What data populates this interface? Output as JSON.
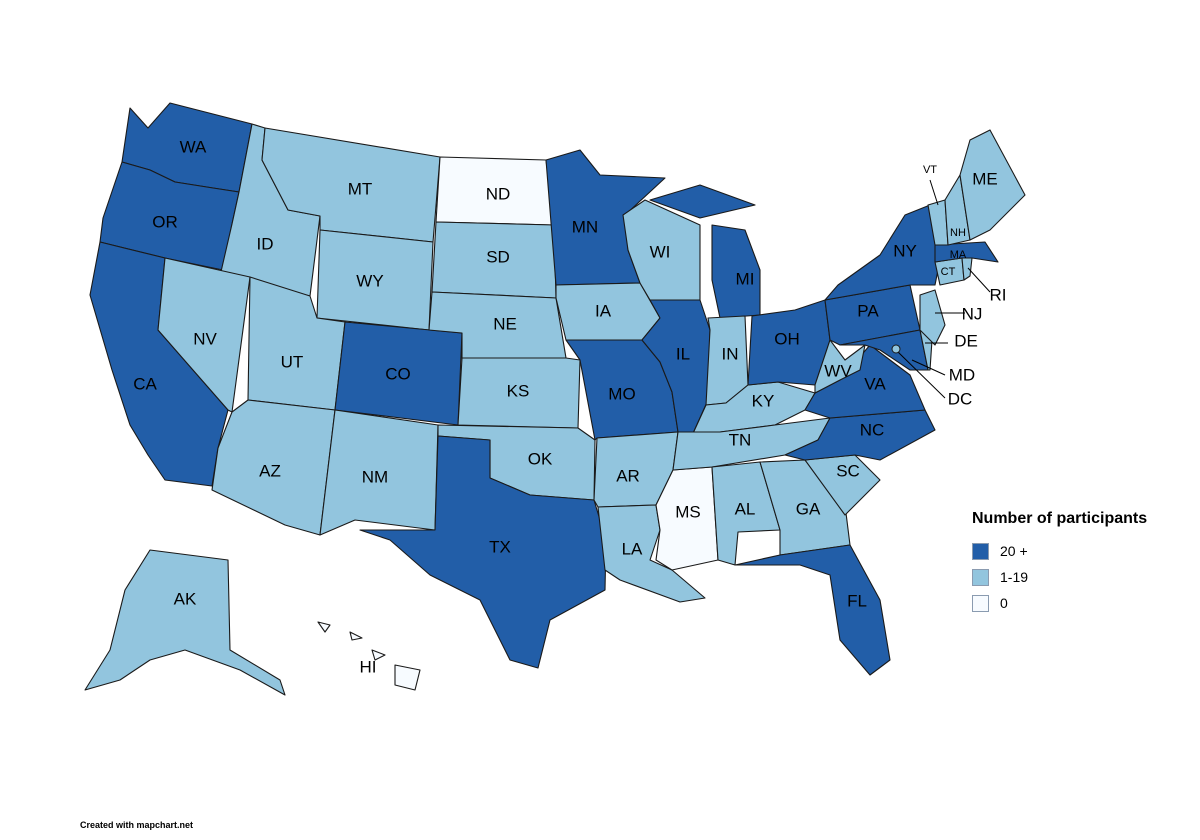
{
  "legend": {
    "title": "Number of participants",
    "items": [
      {
        "label": "20 +",
        "color": "#225ea8"
      },
      {
        "label": "1-19",
        "color": "#92c5de"
      },
      {
        "label": "0",
        "color": "#f7fbff"
      }
    ]
  },
  "credit": "Created with mapchart.net",
  "states": [
    {
      "code": "WA",
      "tier": 0
    },
    {
      "code": "OR",
      "tier": 0
    },
    {
      "code": "CA",
      "tier": 0
    },
    {
      "code": "ID",
      "tier": 1
    },
    {
      "code": "NV",
      "tier": 1
    },
    {
      "code": "MT",
      "tier": 1
    },
    {
      "code": "WY",
      "tier": 1
    },
    {
      "code": "UT",
      "tier": 1
    },
    {
      "code": "AZ",
      "tier": 1
    },
    {
      "code": "CO",
      "tier": 0
    },
    {
      "code": "NM",
      "tier": 1
    },
    {
      "code": "ND",
      "tier": 2
    },
    {
      "code": "SD",
      "tier": 1
    },
    {
      "code": "NE",
      "tier": 1
    },
    {
      "code": "KS",
      "tier": 1
    },
    {
      "code": "OK",
      "tier": 1
    },
    {
      "code": "TX",
      "tier": 0
    },
    {
      "code": "MN",
      "tier": 0
    },
    {
      "code": "IA",
      "tier": 1
    },
    {
      "code": "MO",
      "tier": 0
    },
    {
      "code": "AR",
      "tier": 1
    },
    {
      "code": "LA",
      "tier": 1
    },
    {
      "code": "WI",
      "tier": 1
    },
    {
      "code": "IL",
      "tier": 0
    },
    {
      "code": "MS",
      "tier": 2
    },
    {
      "code": "MI",
      "tier": 0
    },
    {
      "code": "IN",
      "tier": 1
    },
    {
      "code": "KY",
      "tier": 1
    },
    {
      "code": "TN",
      "tier": 1
    },
    {
      "code": "AL",
      "tier": 1
    },
    {
      "code": "OH",
      "tier": 0
    },
    {
      "code": "GA",
      "tier": 1
    },
    {
      "code": "FL",
      "tier": 0
    },
    {
      "code": "SC",
      "tier": 1
    },
    {
      "code": "NC",
      "tier": 0
    },
    {
      "code": "VA",
      "tier": 0
    },
    {
      "code": "WV",
      "tier": 1
    },
    {
      "code": "PA",
      "tier": 0
    },
    {
      "code": "NY",
      "tier": 0
    },
    {
      "code": "MD",
      "tier": 0
    },
    {
      "code": "DE",
      "tier": 1
    },
    {
      "code": "DC",
      "tier": 1
    },
    {
      "code": "NJ",
      "tier": 1
    },
    {
      "code": "CT",
      "tier": 1
    },
    {
      "code": "RI",
      "tier": 1
    },
    {
      "code": "MA",
      "tier": 0
    },
    {
      "code": "VT",
      "tier": 1
    },
    {
      "code": "NH",
      "tier": 1
    },
    {
      "code": "ME",
      "tier": 1
    },
    {
      "code": "AK",
      "tier": 1
    },
    {
      "code": "HI",
      "tier": 2
    }
  ]
}
